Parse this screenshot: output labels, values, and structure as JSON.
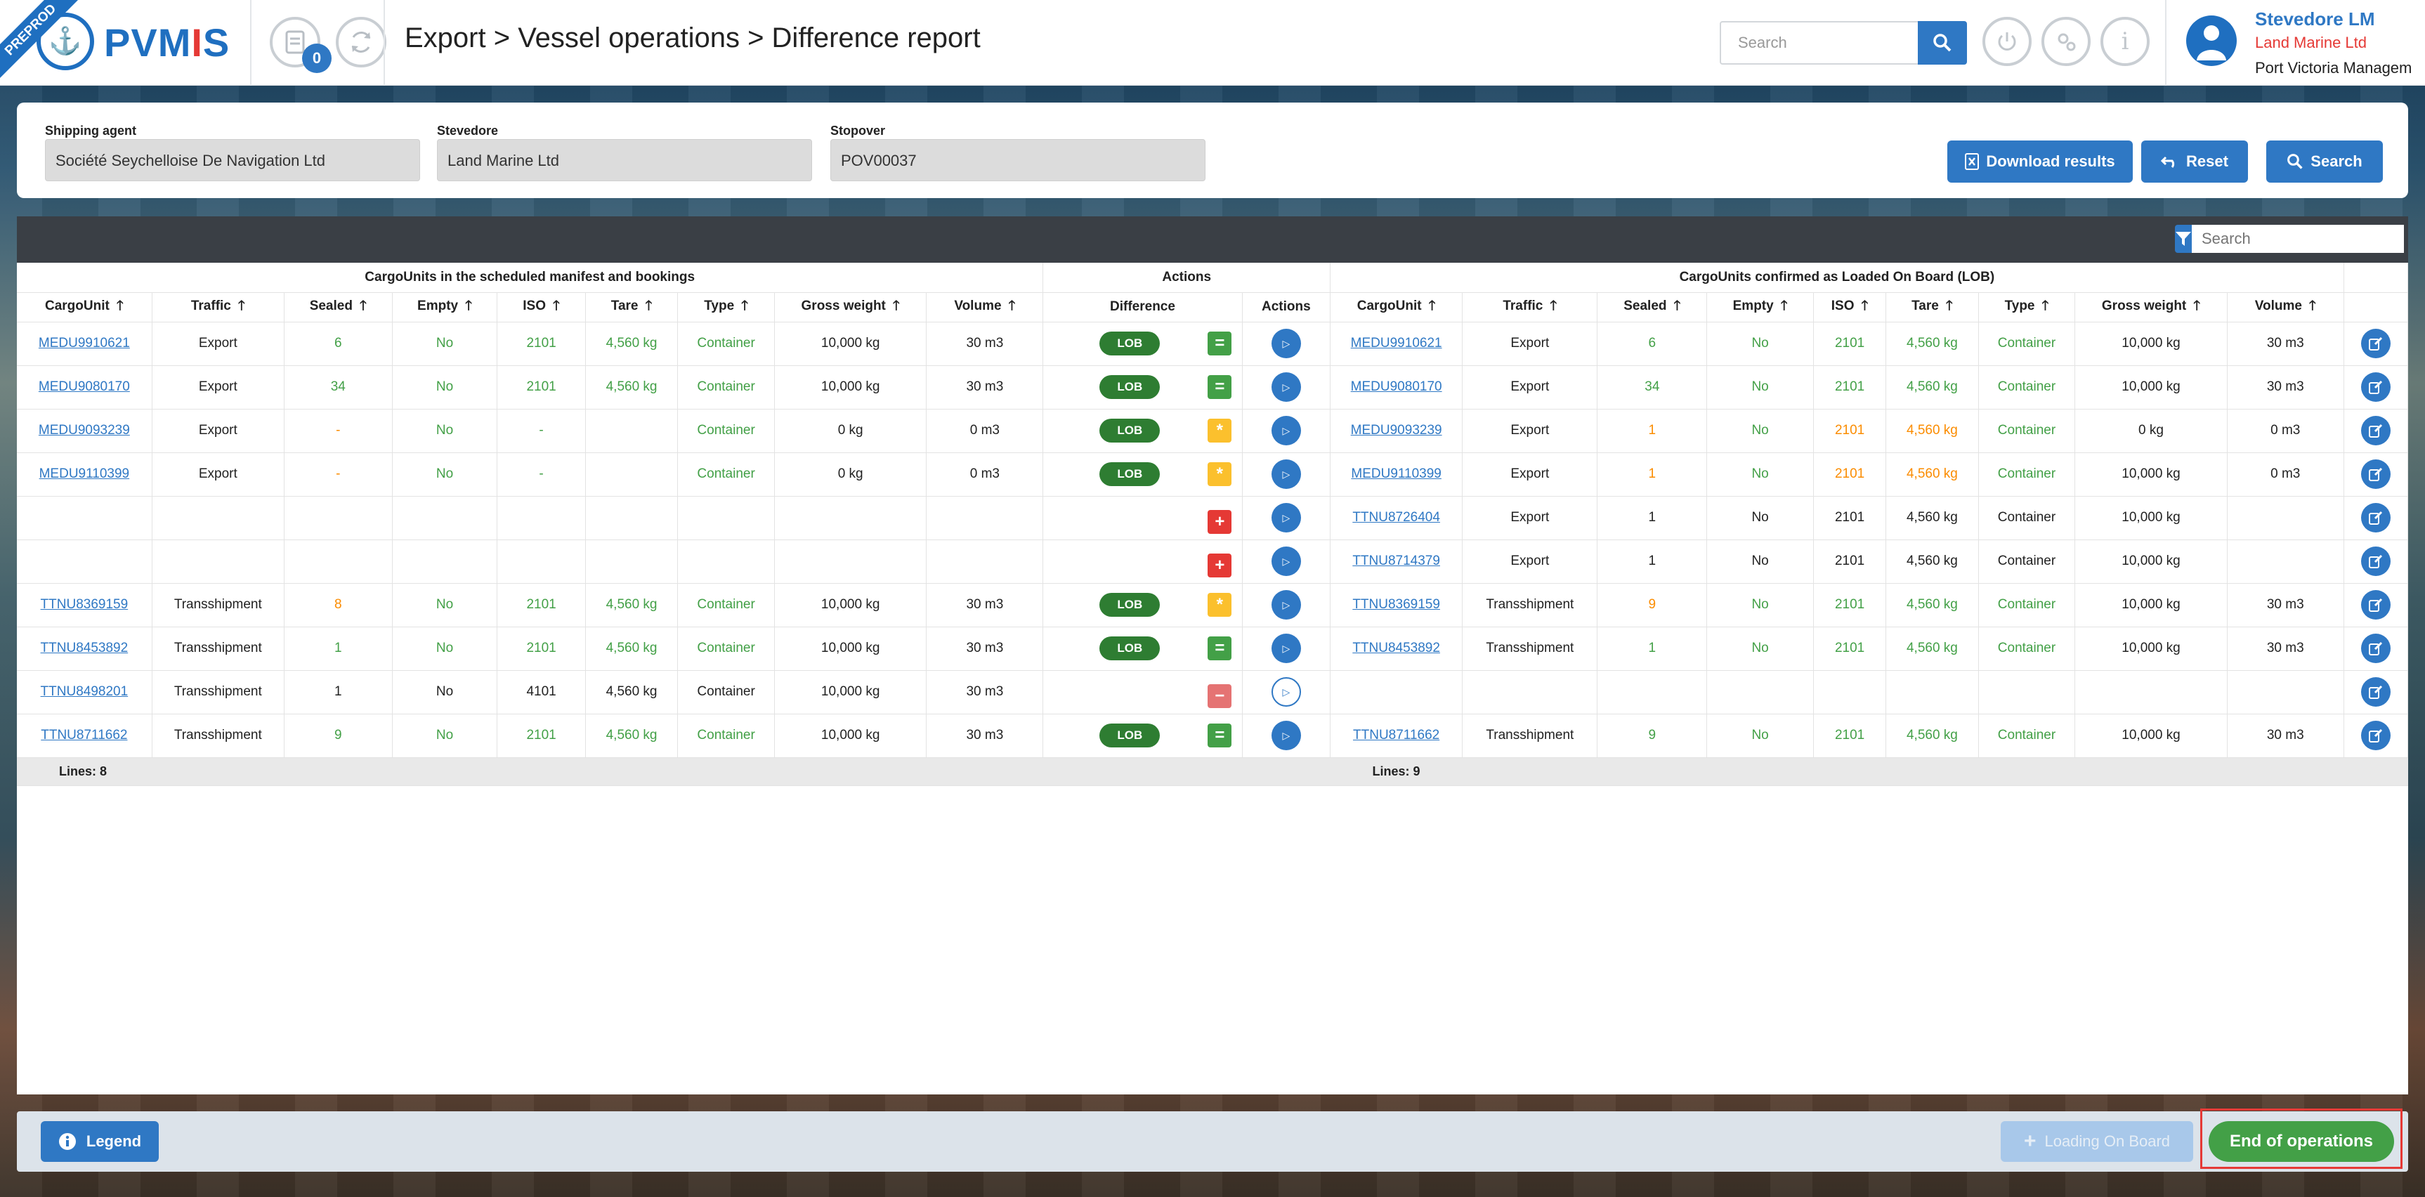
{
  "env_badge": "PREPROD",
  "app": {
    "logo_left": "PVM",
    "logo_red": "I",
    "logo_right": "S"
  },
  "header": {
    "notification_count": "0",
    "breadcrumb": "Export > Vessel operations > Difference report",
    "search_placeholder": "Search",
    "user": {
      "name": "Stevedore LM",
      "company": "Land Marine Ltd",
      "organization": "Port Victoria Managem"
    }
  },
  "filters": {
    "shipping_agent": {
      "label": "Shipping agent",
      "value": "Société Seychelloise De Navigation Ltd"
    },
    "stevedore": {
      "label": "Stevedore",
      "value": "Land Marine Ltd"
    },
    "stopover": {
      "label": "Stopover",
      "value": "POV00037"
    }
  },
  "buttons": {
    "download": "Download results",
    "reset": "Reset",
    "search": "Search",
    "legend": "Legend",
    "loading_on_board": "Loading On Board",
    "end_of_operations": "End of operations"
  },
  "grid": {
    "search_placeholder": "Search",
    "groups": {
      "left": "CargoUnits in the scheduled manifest and bookings",
      "actions": "Actions",
      "right": "CargoUnits confirmed as Loaded On Board (LOB)"
    },
    "columns": {
      "cargo_unit": "CargoUnit",
      "traffic": "Traffic",
      "sealed": "Sealed",
      "empty": "Empty",
      "iso": "ISO",
      "tare": "Tare",
      "type": "Type",
      "gross_weight": "Gross weight",
      "volume": "Volume",
      "difference": "Difference",
      "actions": "Actions"
    },
    "rows": [
      {
        "left": {
          "cu": "MEDU9910621",
          "traffic": "Export",
          "sealed": "6",
          "empty": "No",
          "iso": "2101",
          "tare": "4,560 kg",
          "type": "Container",
          "gross": "10,000 kg",
          "volume": "30 m3"
        },
        "lob": "LOB",
        "diff": "=",
        "right": {
          "cu": "MEDU9910621",
          "traffic": "Export",
          "sealed": "6",
          "empty": "No",
          "iso": "2101",
          "tare": "4,560 kg",
          "type": "Container",
          "gross": "10,000 kg",
          "volume": "30 m3"
        }
      },
      {
        "left": {
          "cu": "MEDU9080170",
          "traffic": "Export",
          "sealed": "34",
          "empty": "No",
          "iso": "2101",
          "tare": "4,560 kg",
          "type": "Container",
          "gross": "10,000 kg",
          "volume": "30 m3"
        },
        "lob": "LOB",
        "diff": "=",
        "right": {
          "cu": "MEDU9080170",
          "traffic": "Export",
          "sealed": "34",
          "empty": "No",
          "iso": "2101",
          "tare": "4,560 kg",
          "type": "Container",
          "gross": "10,000 kg",
          "volume": "30 m3"
        }
      },
      {
        "left": {
          "cu": "MEDU9093239",
          "traffic": "Export",
          "sealed": "-",
          "empty": "No",
          "iso": "-",
          "tare": "",
          "type": "Container",
          "gross": "0 kg",
          "volume": "0 m3"
        },
        "lob": "LOB",
        "diff": "*",
        "right": {
          "cu": "MEDU9093239",
          "traffic": "Export",
          "sealed": "1",
          "empty": "No",
          "iso": "2101",
          "tare": "4,560 kg",
          "type": "Container",
          "gross": "0 kg",
          "volume": "0 m3"
        }
      },
      {
        "left": {
          "cu": "MEDU9110399",
          "traffic": "Export",
          "sealed": "-",
          "empty": "No",
          "iso": "-",
          "tare": "",
          "type": "Container",
          "gross": "0 kg",
          "volume": "0 m3"
        },
        "lob": "LOB",
        "diff": "*",
        "right": {
          "cu": "MEDU9110399",
          "traffic": "Export",
          "sealed": "1",
          "empty": "No",
          "iso": "2101",
          "tare": "4,560 kg",
          "type": "Container",
          "gross": "10,000 kg",
          "volume": "0 m3"
        }
      },
      {
        "left": {
          "cu": "",
          "traffic": "",
          "sealed": "",
          "empty": "",
          "iso": "",
          "tare": "",
          "type": "",
          "gross": "",
          "volume": ""
        },
        "lob": "",
        "diff": "+",
        "right": {
          "cu": "TTNU8726404",
          "traffic": "Export",
          "sealed": "1",
          "empty": "No",
          "iso": "2101",
          "tare": "4,560 kg",
          "type": "Container",
          "gross": "10,000 kg",
          "volume": ""
        }
      },
      {
        "left": {
          "cu": "",
          "traffic": "",
          "sealed": "",
          "empty": "",
          "iso": "",
          "tare": "",
          "type": "",
          "gross": "",
          "volume": ""
        },
        "lob": "",
        "diff": "+",
        "right": {
          "cu": "TTNU8714379",
          "traffic": "Export",
          "sealed": "1",
          "empty": "No",
          "iso": "2101",
          "tare": "4,560 kg",
          "type": "Container",
          "gross": "10,000 kg",
          "volume": ""
        }
      },
      {
        "left": {
          "cu": "TTNU8369159",
          "traffic": "Transshipment",
          "sealed": "8",
          "empty": "No",
          "iso": "2101",
          "tare": "4,560 kg",
          "type": "Container",
          "gross": "10,000 kg",
          "volume": "30 m3"
        },
        "lob": "LOB",
        "diff": "*",
        "right": {
          "cu": "TTNU8369159",
          "traffic": "Transshipment",
          "sealed": "9",
          "empty": "No",
          "iso": "2101",
          "tare": "4,560 kg",
          "type": "Container",
          "gross": "10,000 kg",
          "volume": "30 m3"
        }
      },
      {
        "left": {
          "cu": "TTNU8453892",
          "traffic": "Transshipment",
          "sealed": "1",
          "empty": "No",
          "iso": "2101",
          "tare": "4,560 kg",
          "type": "Container",
          "gross": "10,000 kg",
          "volume": "30 m3"
        },
        "lob": "LOB",
        "diff": "=",
        "right": {
          "cu": "TTNU8453892",
          "traffic": "Transshipment",
          "sealed": "1",
          "empty": "No",
          "iso": "2101",
          "tare": "4,560 kg",
          "type": "Container",
          "gross": "10,000 kg",
          "volume": "30 m3"
        }
      },
      {
        "left": {
          "cu": "TTNU8498201",
          "traffic": "Transshipment",
          "sealed": "1",
          "empty": "No",
          "iso": "4101",
          "tare": "4,560 kg",
          "type": "Container",
          "gross": "10,000 kg",
          "volume": "30 m3"
        },
        "lob": "",
        "diff": "−",
        "right": {
          "cu": "",
          "traffic": "",
          "sealed": "",
          "empty": "",
          "iso": "",
          "tare": "",
          "type": "",
          "gross": "",
          "volume": ""
        }
      },
      {
        "left": {
          "cu": "TTNU8711662",
          "traffic": "Transshipment",
          "sealed": "9",
          "empty": "No",
          "iso": "2101",
          "tare": "4,560 kg",
          "type": "Container",
          "gross": "10,000 kg",
          "volume": "30 m3"
        },
        "lob": "LOB",
        "diff": "=",
        "right": {
          "cu": "TTNU8711662",
          "traffic": "Transshipment",
          "sealed": "9",
          "empty": "No",
          "iso": "2101",
          "tare": "4,560 kg",
          "type": "Container",
          "gross": "10,000 kg",
          "volume": "30 m3"
        }
      }
    ],
    "footer": {
      "left": "Lines: 8",
      "right": "Lines: 9"
    }
  }
}
